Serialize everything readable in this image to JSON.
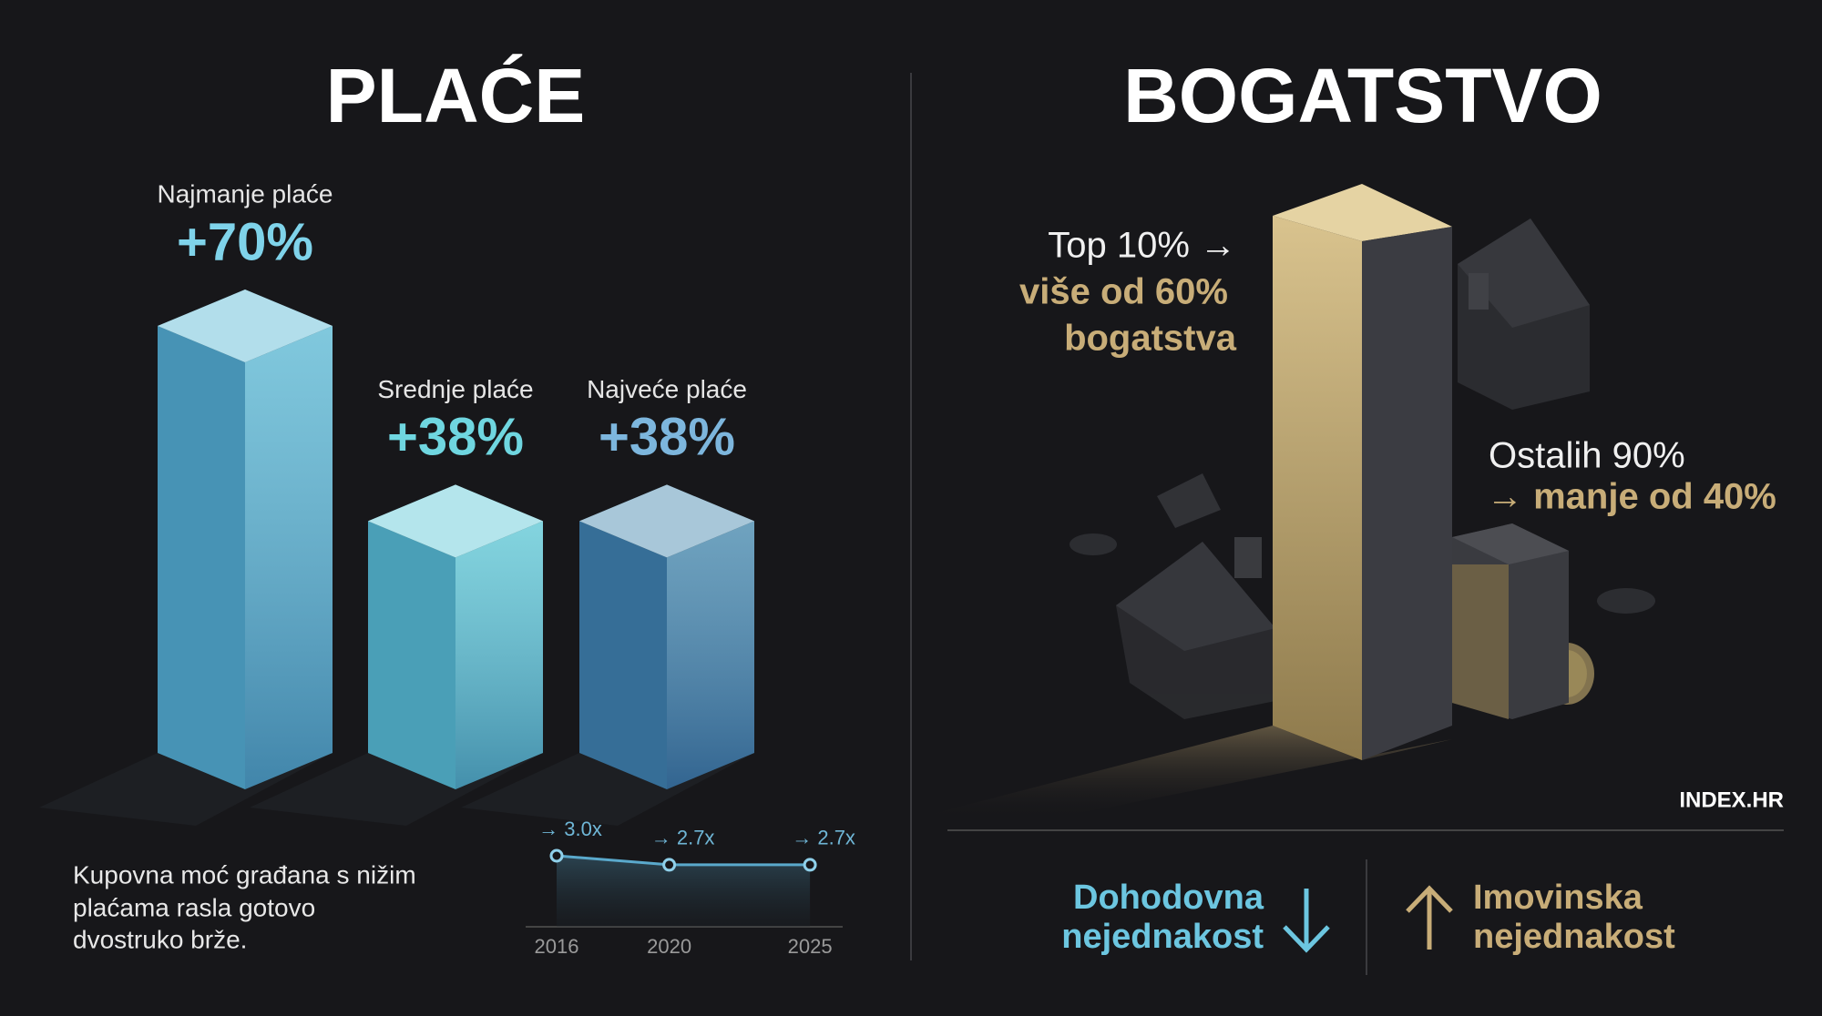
{
  "left": {
    "title": "PLAĆE",
    "caption": [
      "Kupovna moć građana s nižim",
      "plaćama rasla gotovo",
      "dvostruko brže."
    ]
  },
  "chart_data": [
    {
      "type": "bar",
      "categories": [
        "Najmanje plaće",
        "Srednje plaće",
        "Najveće plaće"
      ],
      "values": [
        70,
        38,
        38
      ],
      "value_labels": [
        "+70%",
        "+38%",
        "+38%"
      ],
      "colors": [
        "#56b6d2",
        "#5ac6d4",
        "#3f84aa"
      ],
      "label_colors": [
        "#7fd3ea",
        "#6fd6e0",
        "#7db6dd"
      ]
    },
    {
      "type": "line",
      "x": [
        2016,
        2020,
        2025
      ],
      "values": [
        3.0,
        2.7,
        2.7
      ],
      "value_labels": [
        "→ 3.0x",
        "→ 2.7x",
        "→ 2.7x"
      ],
      "color": "#5aa9cc"
    }
  ],
  "right": {
    "title": "BOGATSTVO",
    "top_label": [
      "Top 10% →",
      "više od 60%",
      "bogatstva"
    ],
    "rest_label": [
      "Ostalih 90%",
      "→ manje od 40%"
    ],
    "income": [
      "Dohodovna",
      "nejednakost"
    ],
    "wealth": [
      "Imovinska",
      "nejednakost"
    ],
    "logo": "INDEX.HR"
  }
}
